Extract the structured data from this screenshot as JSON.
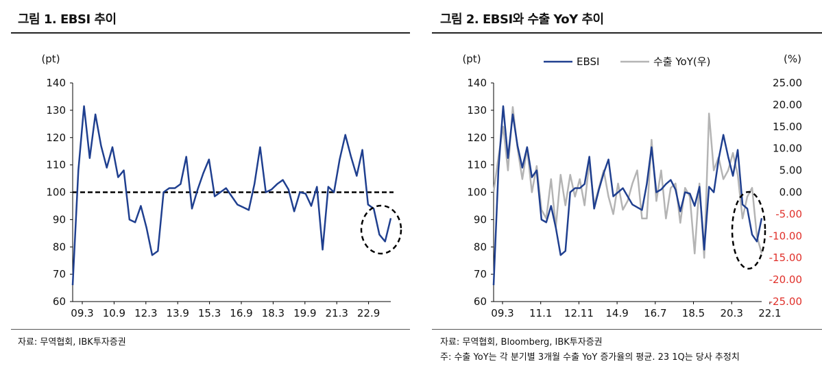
{
  "figure1": {
    "title": "그림 1. EBSI 추이",
    "source": "자료: 무역협회, IBK투자증권"
  },
  "figure2": {
    "title": "그림 2. EBSI와 수출 YoY 추이",
    "source": "자료: 무역협회, Bloomberg, IBK투자증권",
    "note": "주: 수출 YoY는 각 분기별 3개월 수출 YoY 증가율의 평균. 23 1Q는 당사 추정치"
  },
  "colors": {
    "ebsi": "#1f3f8f",
    "export": "#b4b4b4",
    "right_axis": "#e0302a",
    "reference": "#000000"
  },
  "chart_data": [
    {
      "type": "line",
      "ylabel": "(pt)",
      "ylim": [
        60,
        140
      ],
      "yticks": [
        60,
        70,
        80,
        90,
        100,
        110,
        120,
        130,
        140
      ],
      "xticks": [
        "09.3",
        "10.9",
        "12.3",
        "13.9",
        "15.3",
        "16.9",
        "18.3",
        "19.9",
        "21.3",
        "22.9"
      ],
      "reference_line": {
        "value": 100,
        "style": "dashed"
      },
      "annotation": "dashed-ellipse",
      "series": [
        {
          "values": [
            66,
            108,
            131.5,
            112.5,
            128.5,
            117,
            109,
            116.5,
            105.5,
            108,
            90,
            89,
            95,
            87,
            77,
            78.5,
            100,
            101.5,
            101.5,
            103,
            113,
            94,
            101,
            107,
            112,
            98.5,
            100,
            101.5,
            98.5,
            95.5,
            94.5,
            93.5,
            103,
            116.5,
            100,
            101,
            103,
            104.5,
            101,
            93,
            100,
            99.5,
            95,
            102,
            79,
            102,
            100,
            112,
            121,
            113,
            106,
            115.5,
            95.5,
            94,
            84.5,
            82,
            90.5
          ]
        }
      ]
    },
    {
      "type": "line",
      "ylabel": "(pt)",
      "y2label": "(%)",
      "ylim": [
        60,
        140
      ],
      "y2lim": [
        -25,
        25
      ],
      "yticks": [
        60,
        70,
        80,
        90,
        100,
        110,
        120,
        130,
        140
      ],
      "y2ticks": [
        "-25.00",
        "-20.00",
        "-15.00",
        "-10.00",
        "-5.00",
        "0.00",
        "5.00",
        "10.00",
        "15.00",
        "20.00",
        "25.00"
      ],
      "xticks": [
        "09.3",
        "11.1",
        "12.11",
        "14.9",
        "16.7",
        "18.5",
        "20.3",
        "22.1"
      ],
      "legend": "top-center",
      "annotation": "dashed-ellipse",
      "series": [
        {
          "name": "EBSI",
          "axis": "left",
          "values": [
            66,
            108,
            131.5,
            112.5,
            128.5,
            117,
            109,
            116.5,
            105.5,
            108,
            90,
            89,
            95,
            87,
            77,
            78.5,
            100,
            101.5,
            101.5,
            103,
            113,
            94,
            101,
            107,
            112,
            98.5,
            100,
            101.5,
            98.5,
            95.5,
            94.5,
            93.5,
            103,
            116.5,
            100,
            101,
            103,
            104.5,
            101,
            93,
            100,
            99.5,
            95,
            102,
            79,
            102,
            100,
            112,
            121,
            113,
            106,
            115.5,
            95.5,
            94,
            84.5,
            82,
            90.5
          ]
        },
        {
          "name": "수출 YoY(우)",
          "axis": "right",
          "values": [
            0,
            8,
            15,
            5,
            19.5,
            10,
            3,
            10,
            0,
            6,
            -4,
            -6,
            3,
            -8,
            4,
            -3,
            4,
            -1,
            3,
            -3,
            7,
            -3,
            1,
            5,
            -1,
            -5,
            2,
            -4,
            -2,
            2,
            5,
            -6,
            -6,
            12,
            -2,
            5,
            -6,
            1,
            2,
            -7,
            1,
            -1,
            -14,
            2,
            -15,
            18,
            5,
            8,
            3,
            5,
            9,
            4,
            -6,
            -1,
            1,
            -10,
            -14
          ]
        }
      ]
    }
  ]
}
